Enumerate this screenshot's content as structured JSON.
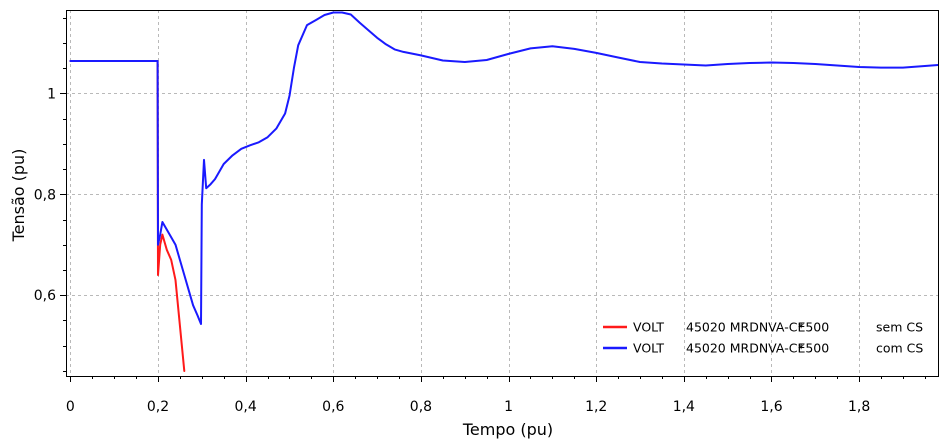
{
  "chart_data": {
    "type": "line",
    "title": "",
    "xlabel": "Tempo (pu)",
    "ylabel": "Tensão (pu)",
    "xlim": [
      -0.01,
      1.98
    ],
    "ylim": [
      0.44,
      1.165
    ],
    "grid": true,
    "legend_position": "bottom-right",
    "x_ticks": [
      {
        "value": 0,
        "label": "0"
      },
      {
        "value": 0.2,
        "label": "0,2"
      },
      {
        "value": 0.4,
        "label": "0,4"
      },
      {
        "value": 0.6,
        "label": "0,6"
      },
      {
        "value": 0.8,
        "label": "0,8"
      },
      {
        "value": 1.0,
        "label": "1"
      },
      {
        "value": 1.2,
        "label": "1,2"
      },
      {
        "value": 1.4,
        "label": "1,4"
      },
      {
        "value": 1.6,
        "label": "1,6"
      },
      {
        "value": 1.8,
        "label": "1,8"
      }
    ],
    "y_ticks": [
      {
        "value": 0.6,
        "label": "0,6"
      },
      {
        "value": 0.8,
        "label": "0,8"
      },
      {
        "value": 1.0,
        "label": "1"
      }
    ],
    "series": [
      {
        "legend": [
          "VOLT",
          "45020 MRDNVA-CE500",
          "*",
          "sem CS"
        ],
        "color": "#ff1a1a",
        "points": [
          [
            0,
            1.064
          ],
          [
            0.199,
            1.064
          ],
          [
            0.2,
            0.64
          ],
          [
            0.205,
            0.7
          ],
          [
            0.21,
            0.72
          ],
          [
            0.22,
            0.69
          ],
          [
            0.23,
            0.67
          ],
          [
            0.24,
            0.63
          ],
          [
            0.25,
            0.54
          ],
          [
            0.26,
            0.45
          ]
        ]
      },
      {
        "legend": [
          "VOLT",
          "45020 MRDNVA-CE500",
          "*",
          "com CS"
        ],
        "color": "#1a1aff",
        "points": [
          [
            0,
            1.064
          ],
          [
            0.199,
            1.064
          ],
          [
            0.2,
            0.7
          ],
          [
            0.205,
            0.72
          ],
          [
            0.21,
            0.745
          ],
          [
            0.22,
            0.73
          ],
          [
            0.23,
            0.715
          ],
          [
            0.24,
            0.7
          ],
          [
            0.25,
            0.67
          ],
          [
            0.26,
            0.64
          ],
          [
            0.27,
            0.61
          ],
          [
            0.28,
            0.58
          ],
          [
            0.29,
            0.56
          ],
          [
            0.298,
            0.543
          ],
          [
            0.3,
            0.78
          ],
          [
            0.305,
            0.868
          ],
          [
            0.31,
            0.812
          ],
          [
            0.32,
            0.82
          ],
          [
            0.33,
            0.83
          ],
          [
            0.34,
            0.845
          ],
          [
            0.35,
            0.86
          ],
          [
            0.37,
            0.877
          ],
          [
            0.39,
            0.89
          ],
          [
            0.41,
            0.897
          ],
          [
            0.43,
            0.903
          ],
          [
            0.45,
            0.913
          ],
          [
            0.47,
            0.93
          ],
          [
            0.49,
            0.96
          ],
          [
            0.5,
            0.995
          ],
          [
            0.51,
            1.05
          ],
          [
            0.52,
            1.095
          ],
          [
            0.54,
            1.135
          ],
          [
            0.56,
            1.145
          ],
          [
            0.58,
            1.155
          ],
          [
            0.6,
            1.16
          ],
          [
            0.62,
            1.16
          ],
          [
            0.64,
            1.156
          ],
          [
            0.66,
            1.14
          ],
          [
            0.68,
            1.125
          ],
          [
            0.7,
            1.11
          ],
          [
            0.72,
            1.097
          ],
          [
            0.74,
            1.087
          ],
          [
            0.76,
            1.082
          ],
          [
            0.8,
            1.075
          ],
          [
            0.85,
            1.065
          ],
          [
            0.9,
            1.062
          ],
          [
            0.95,
            1.066
          ],
          [
            1.0,
            1.078
          ],
          [
            1.05,
            1.089
          ],
          [
            1.1,
            1.093
          ],
          [
            1.15,
            1.088
          ],
          [
            1.2,
            1.08
          ],
          [
            1.25,
            1.071
          ],
          [
            1.3,
            1.062
          ],
          [
            1.35,
            1.059
          ],
          [
            1.4,
            1.057
          ],
          [
            1.45,
            1.055
          ],
          [
            1.5,
            1.058
          ],
          [
            1.55,
            1.06
          ],
          [
            1.6,
            1.061
          ],
          [
            1.65,
            1.06
          ],
          [
            1.7,
            1.058
          ],
          [
            1.75,
            1.055
          ],
          [
            1.8,
            1.052
          ],
          [
            1.85,
            1.051
          ],
          [
            1.9,
            1.051
          ],
          [
            1.95,
            1.054
          ],
          [
            1.98,
            1.056
          ]
        ]
      }
    ]
  }
}
